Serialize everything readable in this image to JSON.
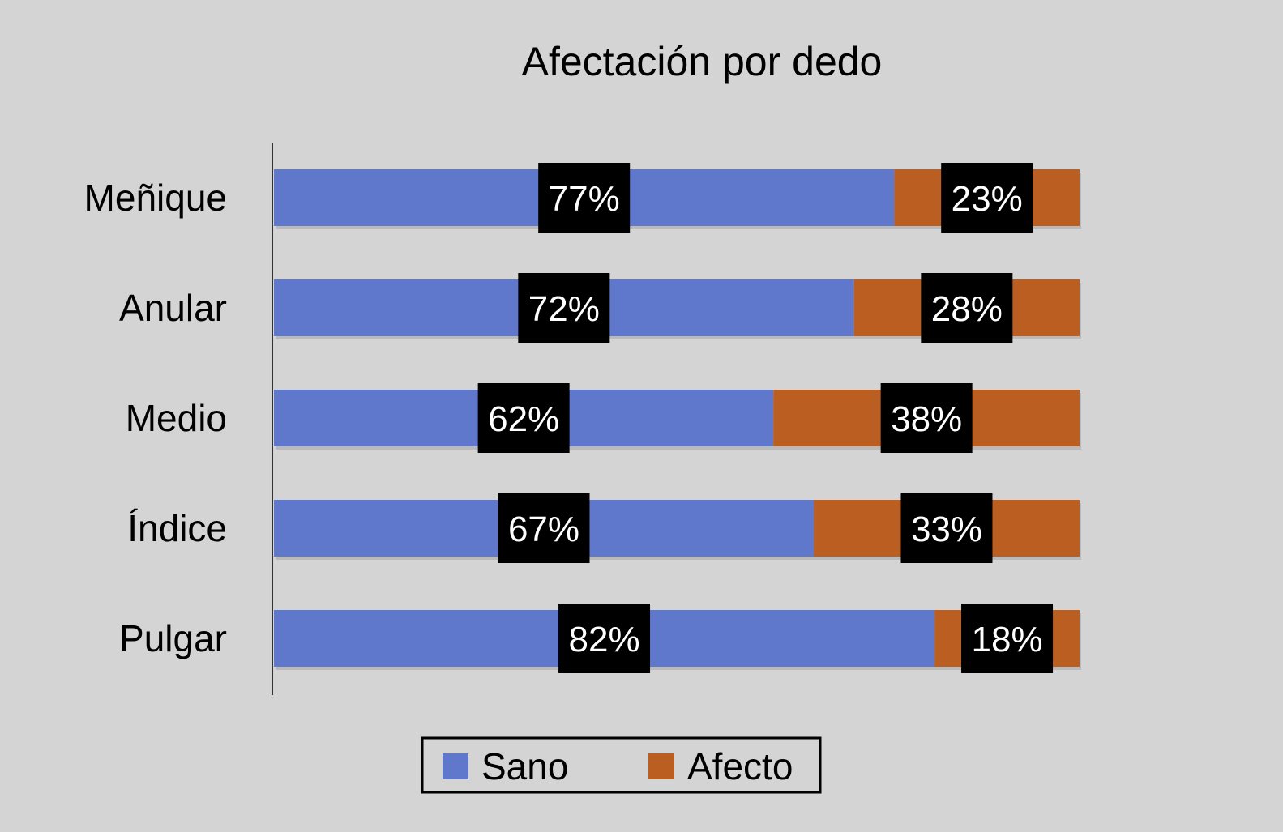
{
  "chart_data": {
    "type": "bar",
    "orientation": "horizontal",
    "stacked": true,
    "title": "Afectación por dedo",
    "categories": [
      "Meñique",
      "Anular",
      "Medio",
      "Índice",
      "Pulgar"
    ],
    "series": [
      {
        "name": "Sano",
        "values": [
          77,
          72,
          62,
          67,
          82
        ],
        "labels": [
          "77%",
          "72%",
          "62%",
          "67%",
          "82%"
        ]
      },
      {
        "name": "Afecto",
        "values": [
          23,
          28,
          38,
          33,
          18
        ],
        "labels": [
          "23%",
          "28%",
          "38%",
          "33%",
          "18%"
        ]
      }
    ],
    "xlim": [
      0,
      100
    ],
    "unit": "%",
    "grid": false,
    "legend_position": "bottom",
    "colors": {
      "Sano": "#5f78cc",
      "Afecto": "#bb5e22",
      "label_box": "#000000",
      "label_text": "#ffffff",
      "background": "#d4d4d4"
    }
  }
}
